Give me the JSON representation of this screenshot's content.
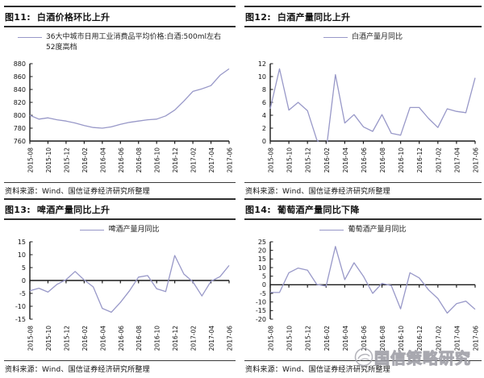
{
  "source_label": "资料来源：Wind、国信证券经济研究所整理",
  "watermark": {
    "text": "国信策略研究",
    "icon": "swirl-globe-logo"
  },
  "chart_data": [
    {
      "id": "fig11",
      "type": "line",
      "fig_label": "图11:",
      "title": "白酒价格环比上升",
      "legend": "36大中城市日用工业消费品平均价格:白酒:500ml左右52度高档",
      "legend_position": "top",
      "grid": false,
      "line_color": "#9898c8",
      "ylim": [
        760,
        880
      ],
      "ytick_step": 20,
      "categories": [
        "2015-08",
        "2015-09",
        "2015-10",
        "2015-11",
        "2015-12",
        "2016-01",
        "2016-02",
        "2016-03",
        "2016-04",
        "2016-05",
        "2016-06",
        "2016-07",
        "2016-08",
        "2016-09",
        "2016-10",
        "2016-11",
        "2016-12",
        "2017-01",
        "2017-02",
        "2017-03",
        "2017-04",
        "2017-05",
        "2017-06"
      ],
      "values": [
        800,
        794,
        796,
        793,
        791,
        788,
        784,
        781,
        780,
        782,
        786,
        789,
        791,
        793,
        794,
        799,
        808,
        822,
        837,
        841,
        846,
        862,
        872
      ]
    },
    {
      "id": "fig12",
      "type": "line",
      "fig_label": "图12:",
      "title": "白酒产量同比上升",
      "legend": "白酒产量月同比",
      "legend_position": "top",
      "grid": false,
      "line_color": "#9898c8",
      "ylim": [
        0,
        12
      ],
      "ytick_step": 2,
      "categories": [
        "2015-08",
        "2015-09",
        "2015-10",
        "2015-11",
        "2015-12",
        "2016-01",
        "2016-02",
        "2016-03",
        "2016-04",
        "2016-05",
        "2016-06",
        "2016-07",
        "2016-08",
        "2016-09",
        "2016-10",
        "2016-11",
        "2016-12",
        "2017-01",
        "2017-02",
        "2017-03",
        "2017-04",
        "2017-05",
        "2017-06"
      ],
      "values": [
        5.0,
        11.2,
        4.8,
        6.0,
        4.7,
        0.2,
        -1.5,
        10.3,
        2.8,
        4.1,
        2.2,
        1.5,
        4.1,
        1.2,
        0.9,
        5.2,
        5.2,
        3.5,
        2.1,
        5.0,
        4.6,
        4.4,
        9.8
      ]
    },
    {
      "id": "fig13",
      "type": "line",
      "fig_label": "图13:",
      "title": "啤酒产量同比上升",
      "legend": "啤酒产量月同比",
      "legend_position": "top",
      "grid": false,
      "line_color": "#9898c8",
      "ylim": [
        -15,
        15
      ],
      "ytick_step": 5,
      "categories": [
        "2015-08",
        "2015-09",
        "2015-10",
        "2015-11",
        "2015-12",
        "2016-01",
        "2016-02",
        "2016-03",
        "2016-04",
        "2016-05",
        "2016-06",
        "2016-07",
        "2016-08",
        "2016-09",
        "2016-10",
        "2016-11",
        "2016-12",
        "2017-01",
        "2017-02",
        "2017-03",
        "2017-04",
        "2017-05",
        "2017-06"
      ],
      "values": [
        -4,
        -3,
        -4.5,
        -1.5,
        0.3,
        3.5,
        0.2,
        -2.5,
        -10.8,
        -12.3,
        -8.5,
        -4,
        1.3,
        1.9,
        -3.2,
        -4.3,
        9.7,
        2.5,
        -0.5,
        -6,
        -0.3,
        1.5,
        5.8
      ]
    },
    {
      "id": "fig14",
      "type": "line",
      "fig_label": "图14:",
      "title": "葡萄酒产量同比下降",
      "legend": "葡萄酒产量月同比",
      "legend_position": "top",
      "grid": false,
      "line_color": "#9898c8",
      "ylim": [
        -20,
        25
      ],
      "ytick_step": 5,
      "categories": [
        "2015-08",
        "2015-09",
        "2015-10",
        "2015-11",
        "2015-12",
        "2016-01",
        "2016-02",
        "2016-03",
        "2016-04",
        "2016-05",
        "2016-06",
        "2016-07",
        "2016-08",
        "2016-09",
        "2016-10",
        "2016-11",
        "2016-12",
        "2017-01",
        "2017-02",
        "2017-03",
        "2017-04",
        "2017-05",
        "2017-06"
      ],
      "values": [
        -4.5,
        -4.5,
        7,
        9.7,
        8.5,
        0.2,
        -0.8,
        22.3,
        3,
        12.8,
        5,
        -5,
        0.8,
        -0.5,
        -14,
        7,
        4,
        -3,
        -8,
        -16.5,
        -11,
        -9.5,
        -14.3
      ]
    }
  ],
  "panels": [
    {
      "chart": 0
    },
    {
      "chart": 1
    },
    {
      "chart": 2
    },
    {
      "chart": 3
    }
  ]
}
